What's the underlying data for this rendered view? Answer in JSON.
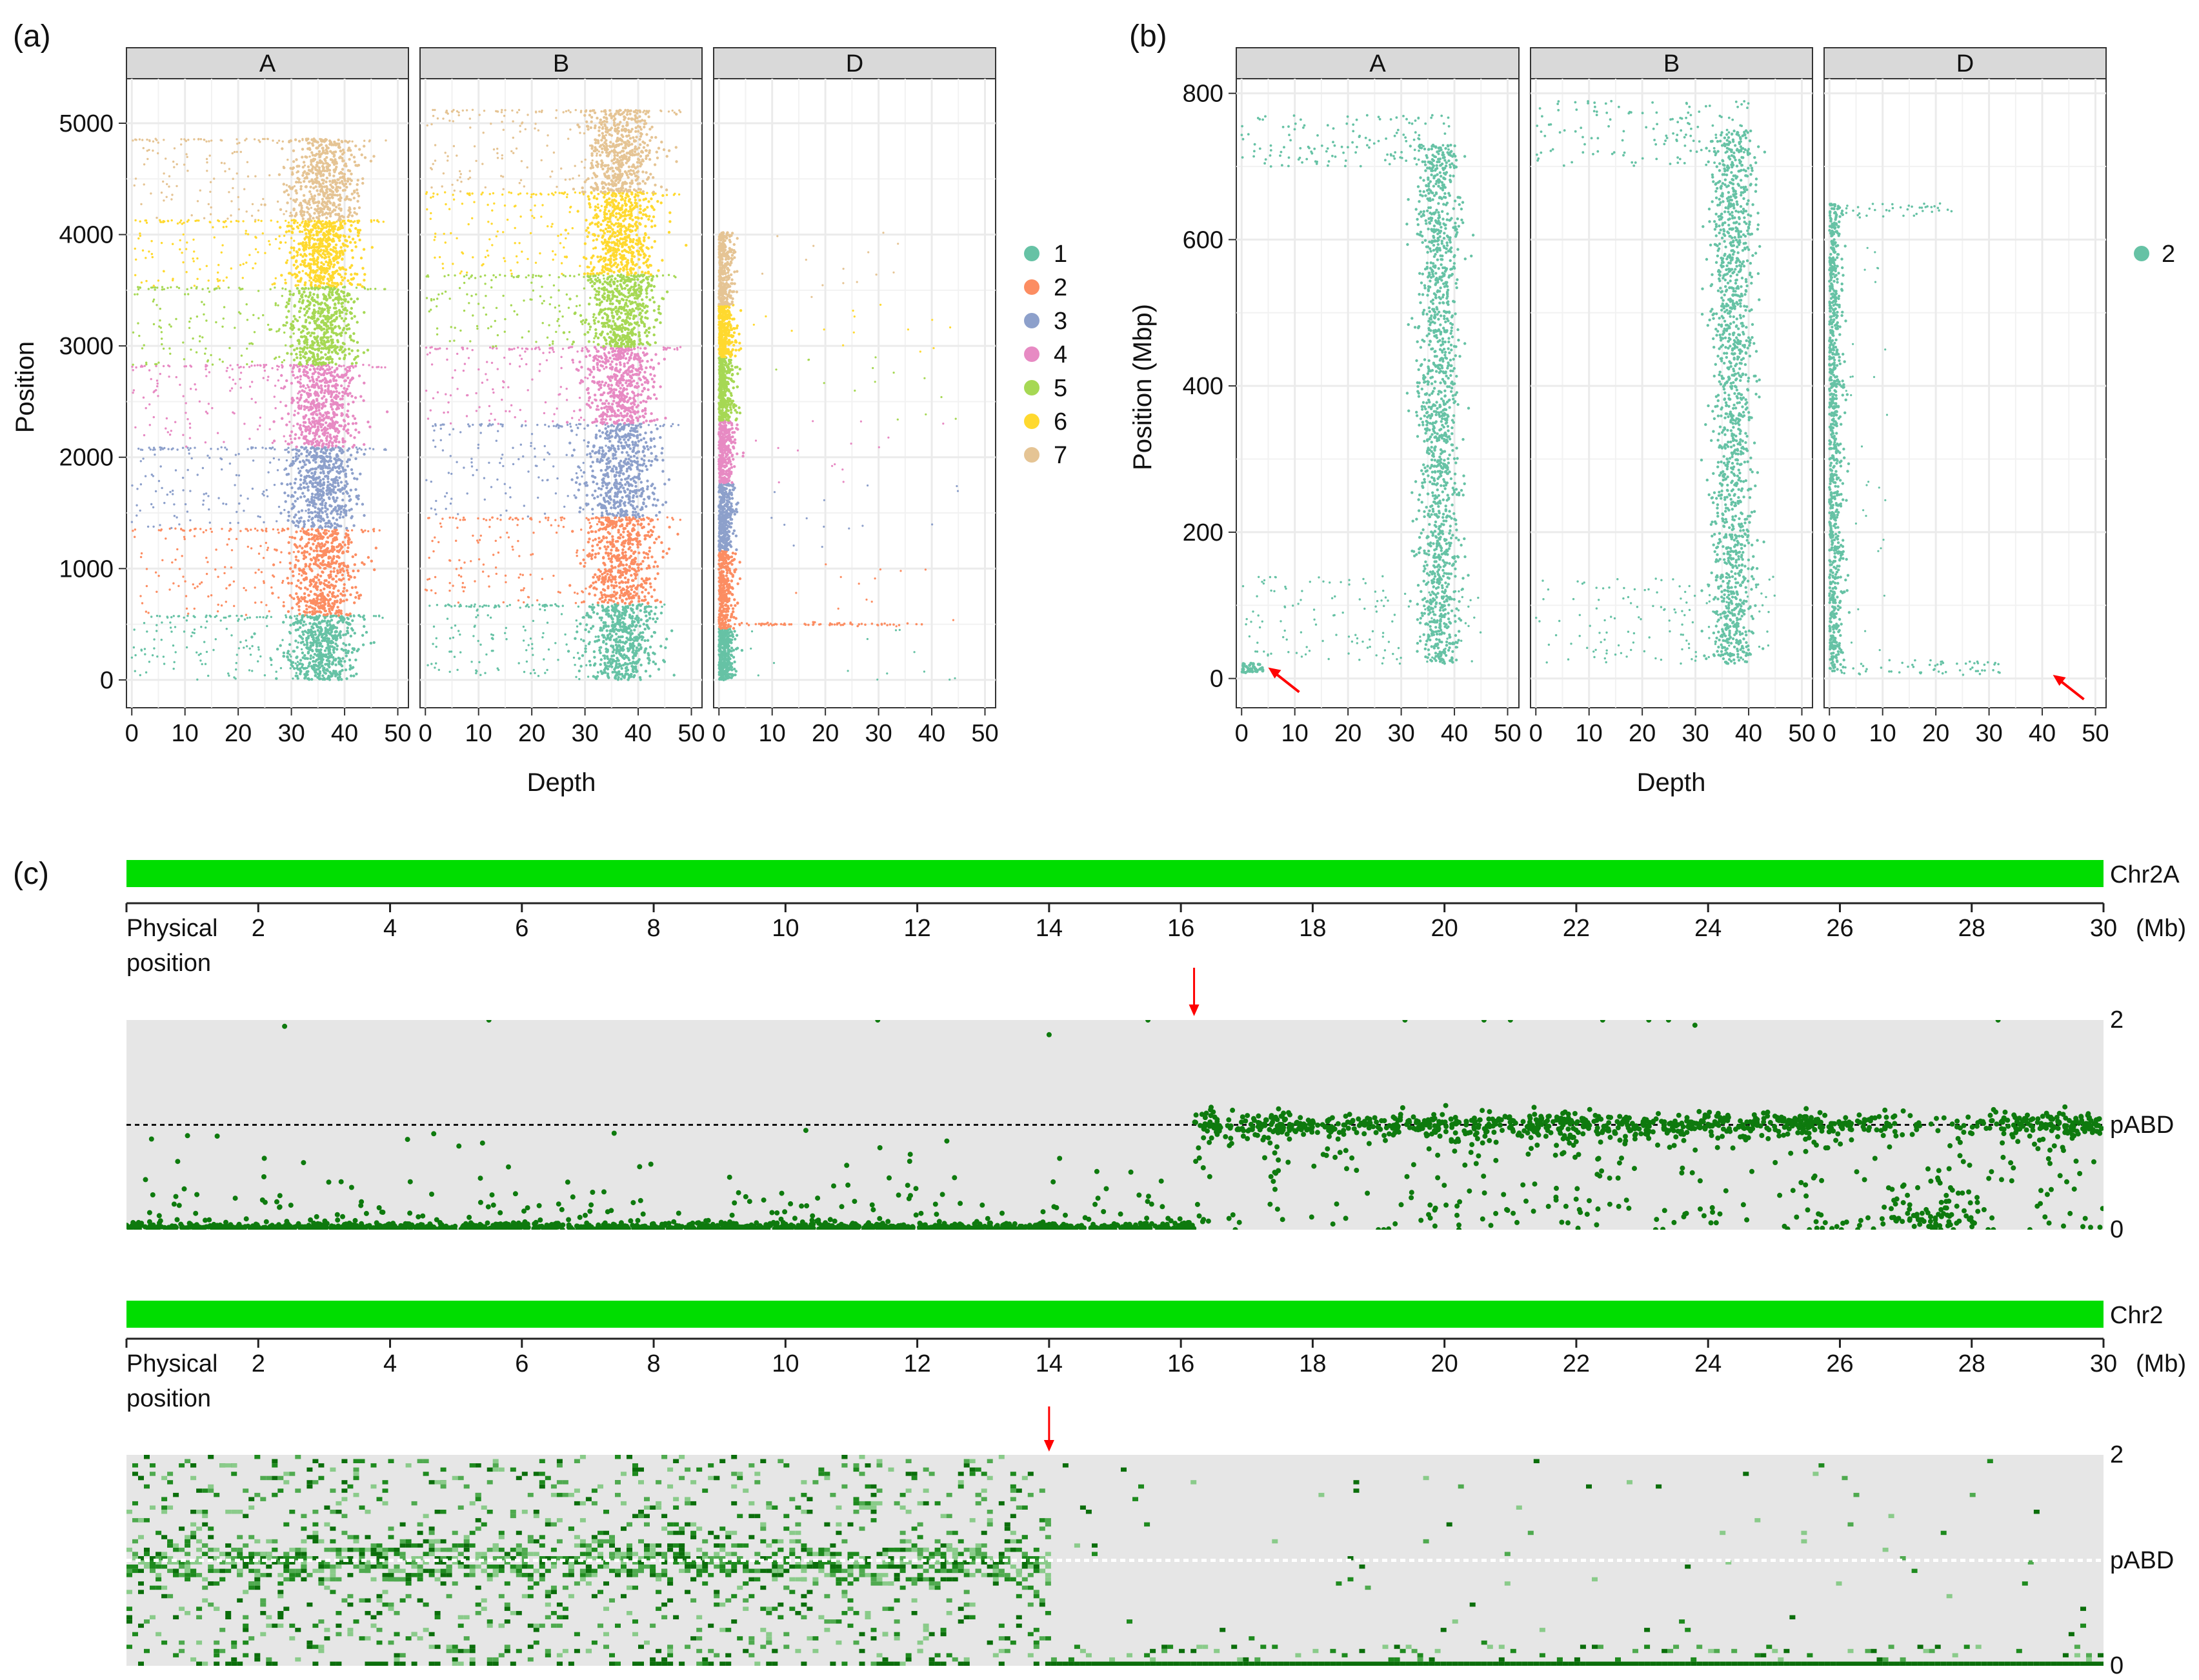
{
  "panels": {
    "a_label": "(a)",
    "b_label": "(b)",
    "c_label": "(c)"
  },
  "colors": {
    "series": [
      "#66C2A5",
      "#FC8D62",
      "#8DA0CB",
      "#E78AC3",
      "#A6D854",
      "#FFD92F",
      "#E5C494"
    ],
    "panel_bg": "#FFFFFF",
    "grid": "#EBEBEB",
    "strip_bg": "#D9D9D9",
    "chrom_bar": "#00DD00",
    "point_green": "#0E7A0E",
    "arrow": "#FF0000",
    "pabd_bg": "#E6E6E6"
  },
  "chart_data": [
    {
      "id": "a",
      "type": "scatter",
      "facets": [
        "A",
        "B",
        "D"
      ],
      "xlabel": "Depth",
      "ylabel": "Position",
      "xlim": [
        -1,
        52
      ],
      "ylim": [
        -250,
        5400
      ],
      "xticks": [
        0,
        10,
        20,
        30,
        40,
        50
      ],
      "yticks": [
        0,
        1000,
        2000,
        3000,
        4000,
        5000
      ],
      "grid": true,
      "legend": {
        "position": "right",
        "entries": [
          "1",
          "2",
          "3",
          "4",
          "5",
          "6",
          "7"
        ]
      },
      "series": [
        {
          "name": "1",
          "bands": {
            "A": [
              0,
              580
            ],
            "B": [
              0,
              680
            ],
            "D": [
              0,
              460
            ]
          }
        },
        {
          "name": "2",
          "bands": {
            "A": [
              580,
              1360
            ],
            "B": [
              680,
              1460
            ],
            "D": [
              460,
              1160
            ]
          }
        },
        {
          "name": "3",
          "bands": {
            "A": [
              1360,
              2090
            ],
            "B": [
              1460,
              2300
            ],
            "D": [
              1160,
              1770
            ]
          }
        },
        {
          "name": "4",
          "bands": {
            "A": [
              2090,
              2830
            ],
            "B": [
              2300,
              2990
            ],
            "D": [
              1770,
              2330
            ]
          }
        },
        {
          "name": "5",
          "bands": {
            "A": [
              2830,
              3530
            ],
            "B": [
              2990,
              3640
            ],
            "D": [
              2330,
              2900
            ]
          }
        },
        {
          "name": "6",
          "bands": {
            "A": [
              3530,
              4130
            ],
            "B": [
              3640,
              4380
            ],
            "D": [
              2900,
              3370
            ]
          }
        },
        {
          "name": "7",
          "bands": {
            "A": [
              4130,
              4860
            ],
            "B": [
              4380,
              5120
            ],
            "D": [
              3370,
              4020
            ]
          }
        }
      ],
      "depth_center": {
        "A": 36,
        "B": 37,
        "D": 0.6
      }
    },
    {
      "id": "b",
      "type": "scatter",
      "facets": [
        "A",
        "B",
        "D"
      ],
      "xlabel": "Depth",
      "ylabel": "Position (Mbp)",
      "xlim": [
        -1,
        52
      ],
      "ylim": [
        -40,
        820
      ],
      "xticks": [
        0,
        10,
        20,
        30,
        40,
        50
      ],
      "yticks": [
        0,
        200,
        400,
        600,
        800
      ],
      "grid": true,
      "legend": {
        "position": "right",
        "entries": [
          "2"
        ]
      },
      "series": [
        {
          "name": "2",
          "extent": {
            "A": [
              20,
              770
            ],
            "B": [
              20,
              790
            ],
            "D": [
              10,
              650
            ]
          }
        }
      ],
      "depth_center": {
        "A": 37,
        "B": 37,
        "D": 0.7
      },
      "arrows": [
        {
          "facet": "A",
          "x": 5,
          "y": 15
        },
        {
          "facet": "D",
          "x": 42,
          "y": 5
        }
      ]
    },
    {
      "id": "c1",
      "type": "scatter",
      "chromosome": "Chr2A",
      "axis_title": "Physical position",
      "unit": "(Mb)",
      "xlim": [
        0,
        30
      ],
      "xticks": [
        2,
        4,
        6,
        8,
        10,
        12,
        14,
        16,
        18,
        20,
        22,
        24,
        26,
        28,
        30
      ],
      "ylabels": {
        "top": "2",
        "mid": "pABD",
        "bottom": "0"
      },
      "ylim": [
        0,
        2
      ],
      "breakpoint": 16.2,
      "arrow_x": 16.2
    },
    {
      "id": "c2",
      "type": "heatmap",
      "chromosome": "Chr2",
      "axis_title": "Physical position",
      "unit": "(Mb)",
      "xlim": [
        0,
        30
      ],
      "xticks": [
        2,
        4,
        6,
        8,
        10,
        12,
        14,
        16,
        18,
        20,
        22,
        24,
        26,
        28,
        30
      ],
      "ylabels": {
        "top": "2",
        "mid": "pABD",
        "bottom": "0"
      },
      "ylim": [
        0,
        2
      ],
      "breakpoint": 14,
      "arrow_x": 14
    }
  ]
}
